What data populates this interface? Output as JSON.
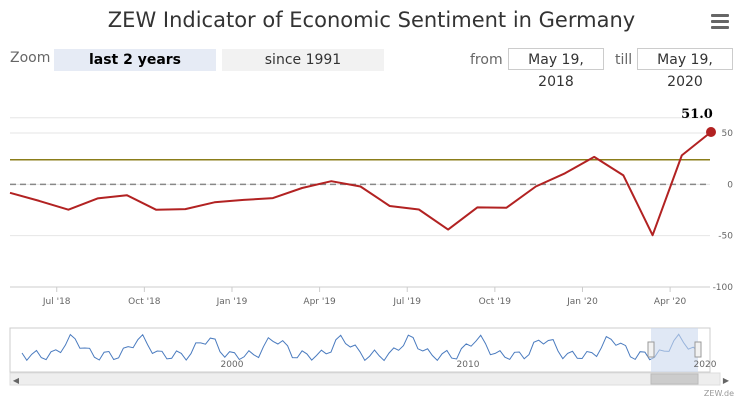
{
  "header": {
    "title": "ZEW Indicator of Economic Sentiment in Germany",
    "menu_icon": "hamburger-menu-icon"
  },
  "range_selector": {
    "zoom_label": "Zoom",
    "buttons": [
      "last 2 years",
      "since 1991"
    ],
    "active_button": "last 2 years",
    "from_label": "from",
    "from_value": "May 19, 2018",
    "till_label": "till",
    "till_value": "May 19, 2020"
  },
  "chart_data": {
    "type": "line",
    "title": "ZEW Indicator of Economic Sentiment in Germany",
    "series": [
      {
        "color": "#b22222",
        "x": [
          "2018-05",
          "2018-06",
          "2018-07",
          "2018-08",
          "2018-09",
          "2018-10",
          "2018-11",
          "2018-12",
          "2019-01",
          "2019-02",
          "2019-03",
          "2019-04",
          "2019-05",
          "2019-06",
          "2019-07",
          "2019-08",
          "2019-09",
          "2019-10",
          "2019-11",
          "2019-12",
          "2020-01",
          "2020-02",
          "2020-03",
          "2020-04",
          "2020-05"
        ],
        "values": [
          -8.2,
          -16.1,
          -24.7,
          -13.7,
          -10.6,
          -24.7,
          -24.1,
          -17.5,
          -15.2,
          -13.4,
          -3.6,
          3.1,
          -2.1,
          -21.1,
          -24.5,
          -44.1,
          -22.5,
          -22.8,
          -2.1,
          10.7,
          26.7,
          8.7,
          -49.5,
          28.2,
          51.0
        ]
      }
    ],
    "highlight_label": "51.0",
    "reference_lines": [
      {
        "value": 24,
        "color": "#8b7d1a",
        "style": "solid"
      },
      {
        "value": 0,
        "color": "#888888",
        "style": "dashed"
      }
    ],
    "ylim": [
      -100,
      60
    ],
    "y_ticks": [
      50,
      0,
      -50,
      -100
    ],
    "y_tick_labels": [
      "50",
      "0",
      "-50",
      "-100"
    ],
    "x_tick_labels": [
      "Jul '18",
      "Oct '18",
      "Jan '19",
      "Apr '19",
      "Jul '19",
      "Oct '19",
      "Jan '20",
      "Apr '20"
    ],
    "grid": true,
    "navigator": {
      "labels": [
        "2000",
        "2010",
        "2020"
      ],
      "series_color": "#4a7bbf"
    },
    "credit": "ZEW.de"
  }
}
